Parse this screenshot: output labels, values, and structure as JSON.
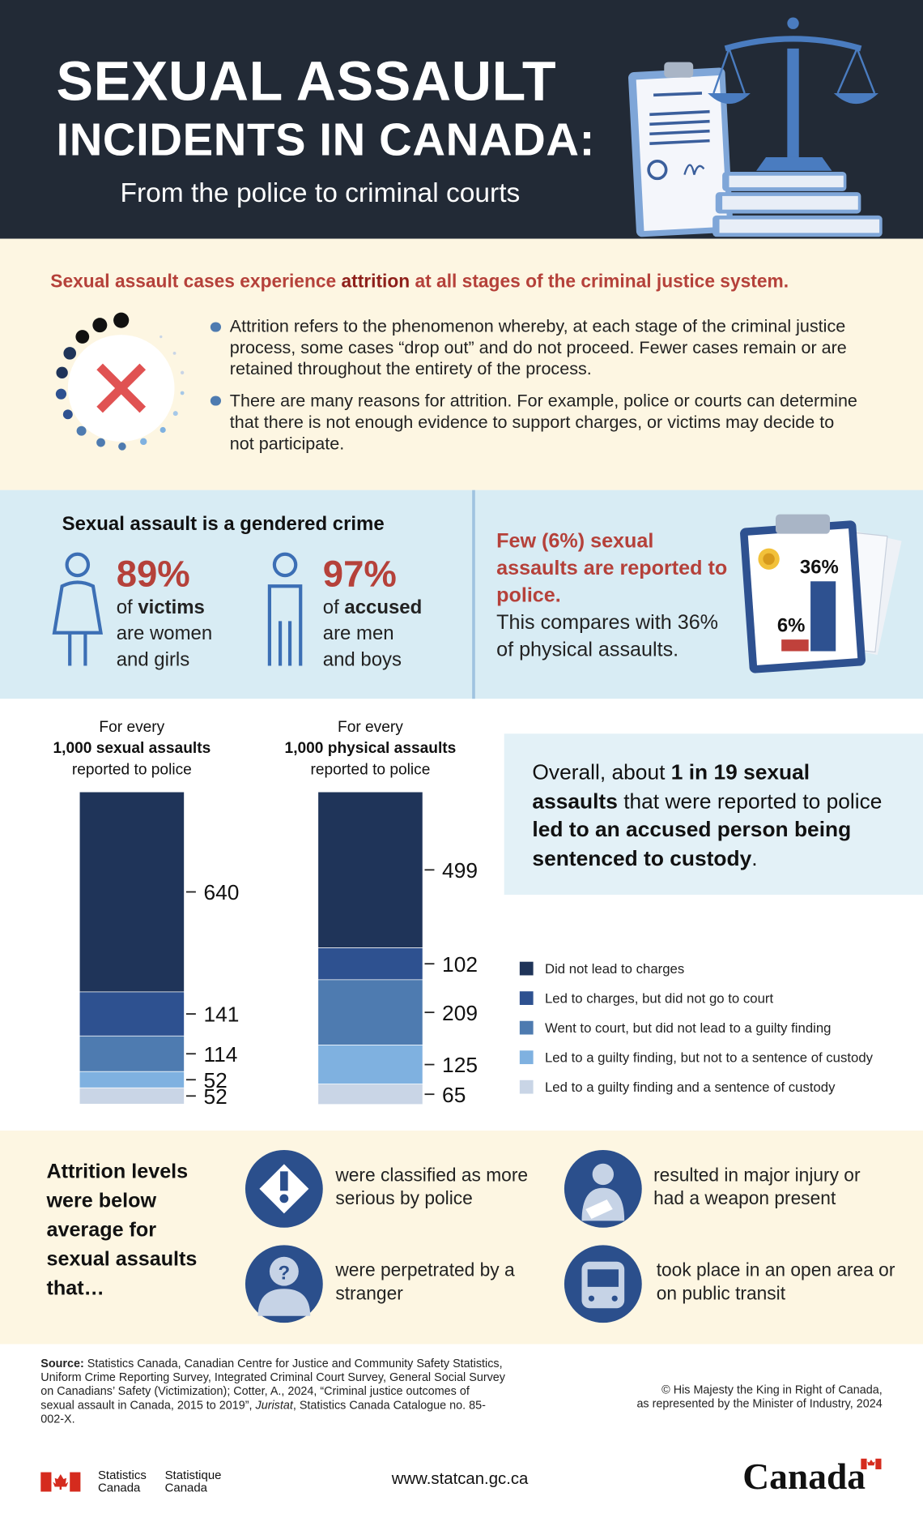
{
  "header": {
    "title": [
      "SEXUAL ASSAULT",
      "INCIDENTS IN CANADA:"
    ],
    "subtitle": "From the police to criminal courts"
  },
  "attrition": {
    "headline": [
      "Sexual assault cases experience ",
      "attrition",
      " at all stages of the criminal justice system."
    ],
    "bullets": [
      "Attrition refers to the phenomenon whereby, at each stage of the criminal justice process, some cases “drop out” and do not proceed. Fewer cases remain or are retained throughout the entirety of the process.",
      "There are many reasons for attrition. For example, police or courts can determine that there is not enough evidence to support charges, or victims may decide to not participate."
    ]
  },
  "gendered": {
    "title": "Sexual assault is a gendered crime",
    "stats": [
      {
        "percent": "89%",
        "text": [
          "of ",
          "victims",
          "are women",
          "and girls"
        ]
      },
      {
        "percent": "97%",
        "text": [
          "of ",
          "accused",
          "are men",
          "and boys"
        ]
      }
    ]
  },
  "reporting": {
    "headline": "Few (6%) sexual assaults are reported to police.",
    "text": "This compares with 36% of physical assaults.",
    "chart": {
      "values": [
        6,
        36
      ],
      "value_labels": [
        "6%",
        "36%"
      ],
      "colors": [
        "#c0413b",
        "#2e5190"
      ]
    }
  },
  "outcomes": {
    "ylim": [
      0,
      1000
    ],
    "charts": [
      {
        "heading": [
          "For every",
          "1,000 sexual assaults",
          "reported to police"
        ],
        "values": [
          640,
          141,
          114,
          52,
          52
        ]
      },
      {
        "heading": [
          "For every",
          "1,000 physical assaults",
          "reported to police"
        ],
        "values": [
          499,
          102,
          209,
          125,
          65
        ]
      }
    ],
    "series": [
      {
        "name": "Did not lead to charges",
        "color": "#1f3459"
      },
      {
        "name": "Led to charges, but did not go to court",
        "color": "#2e5190"
      },
      {
        "name": "Went to court, but did not lead to a guilty finding",
        "color": "#4e7bb0"
      },
      {
        "name": "Led to a guilty finding, but not to a sentence of custody",
        "color": "#7fb1e0"
      },
      {
        "name": "Led to a guilty finding and a sentence of custody",
        "color": "#c9d5e6"
      }
    ]
  },
  "overall": [
    "Overall, about ",
    "1 in 19 sexual assaults",
    " that were reported to police ",
    "led to an accused person being sentenced to custody",
    "."
  ],
  "factors": {
    "title": "Attrition levels were below average for sexual assaults that…",
    "items": [
      "were classified as more serious by police",
      "resulted in major injury or had a weapon present",
      "were perpetrated by a stranger",
      "took place in an open area or on public transit"
    ]
  },
  "footer": {
    "source": [
      "Source:",
      " Statistics Canada, Canadian Centre for Justice and Community Safety Statistics, Uniform Crime Reporting Survey, Integrated Criminal Court Survey, General Social Survey on Canadians’ Safety (Victimization); Cotter, A., 2024, “Criminal justice outcomes of sexual assault in Canada, 2015 to 2019”, ",
      "Juristat",
      ", Statistics Canada Catalogue no. 85-002-X."
    ],
    "copyright": [
      "© His Majesty the King in Right of Canada,",
      "as represented by the Minister of Industry, 2024"
    ],
    "agency_en": [
      "Statistics",
      "Canada"
    ],
    "agency_fr": [
      "Statistique",
      "Canada"
    ],
    "url": "www.statcan.gc.ca",
    "wordmark": "Canada"
  }
}
